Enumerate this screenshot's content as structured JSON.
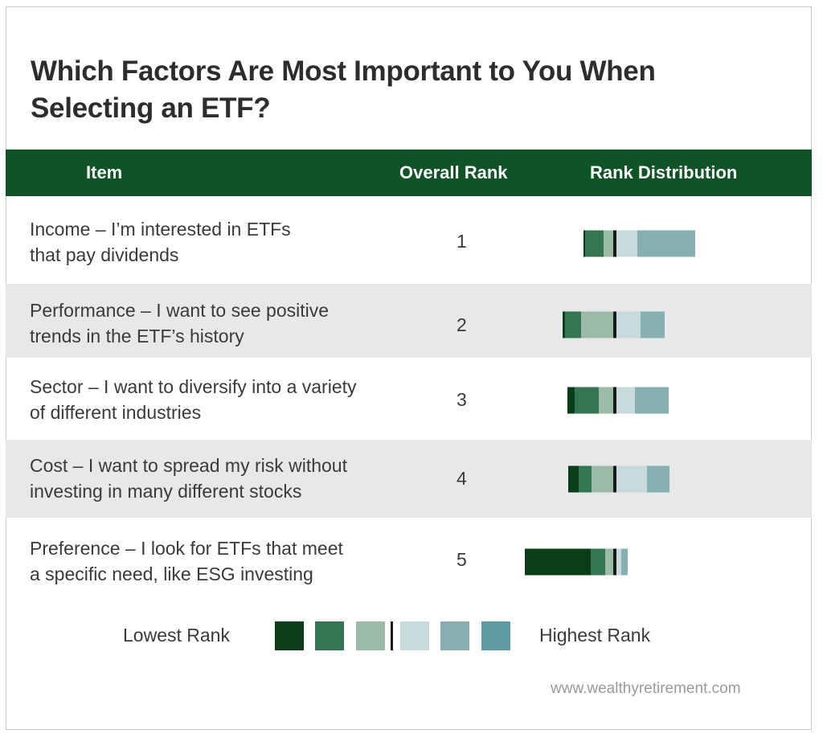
{
  "title": "Which Factors Are Most Important to You When\nSelecting an ETF?",
  "header": {
    "item": "Item",
    "overall_rank": "Overall Rank",
    "rank_distribution": "Rank Distribution"
  },
  "rows": [
    {
      "item": "Income – I’m interested in ETFs\nthat pay dividends",
      "rank": "1",
      "shaded": false
    },
    {
      "item": "Performance – I want to see positive\ntrends in the ETF’s history",
      "rank": "2",
      "shaded": true
    },
    {
      "item": "Sector – I want to diversify into a variety\nof different industries",
      "rank": "3",
      "shaded": false
    },
    {
      "item": "Cost – I want to spread my risk without\ninvesting in many different stocks",
      "rank": "4",
      "shaded": true
    },
    {
      "item": "Preference – I look for ETFs that meet\na specific need, like ESG investing",
      "rank": "5",
      "shaded": false
    }
  ],
  "legend": {
    "low_label": "Lowest Rank",
    "high_label": "Highest Rank"
  },
  "source": "www.wealthyretirement.com",
  "colors": {
    "header_bg": "#0e5427",
    "rank_scale": [
      "#0b3d1a",
      "#357552",
      "#9bbba6",
      "#c7dbdc",
      "#86afb2",
      "#5f9ba0"
    ],
    "divider": "#1a1a1a"
  },
  "chart_data": {
    "type": "bar",
    "subtype": "diverging-stacked",
    "series_order": [
      "Lowest Rank",
      "2",
      "3",
      "4",
      "5",
      "Highest Rank"
    ],
    "categories": [
      "Income",
      "Performance",
      "Sector",
      "Cost",
      "Preference"
    ],
    "values": [
      [
        1,
        24,
        14,
        28,
        72,
        0
      ],
      [
        3,
        20,
        42,
        32,
        30,
        0
      ],
      [
        9,
        30,
        20,
        25,
        42,
        0
      ],
      [
        13,
        16,
        29,
        40,
        28,
        0
      ],
      [
        82,
        18,
        12,
        8,
        8,
        0
      ]
    ]
  }
}
